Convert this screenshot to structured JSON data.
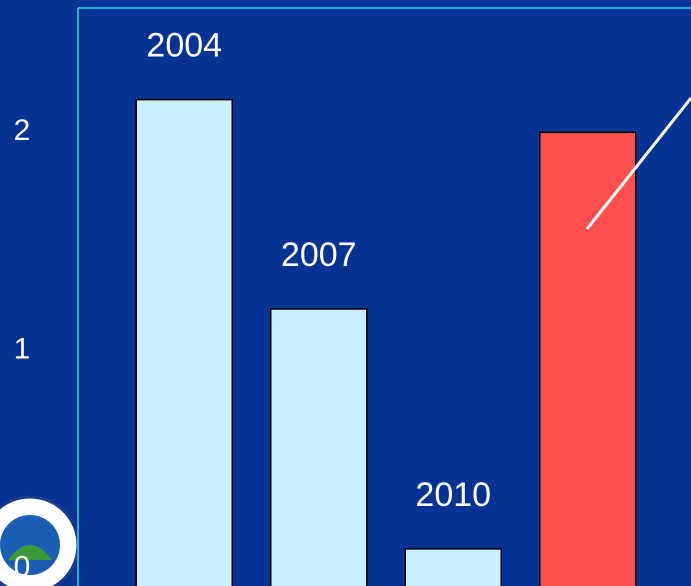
{
  "chart_data": {
    "type": "bar",
    "categories": [
      "2004",
      "2007",
      "2010",
      null
    ],
    "values": [
      2.15,
      1.19,
      0.09,
      2.0
    ],
    "colors": [
      "#c8f0ff",
      "#c8f0ff",
      "#c8f0ff",
      "#ff5050"
    ],
    "ylim": [
      -0.08,
      2.57
    ],
    "yticks": [
      0,
      1,
      2
    ],
    "grid": false
  }
}
